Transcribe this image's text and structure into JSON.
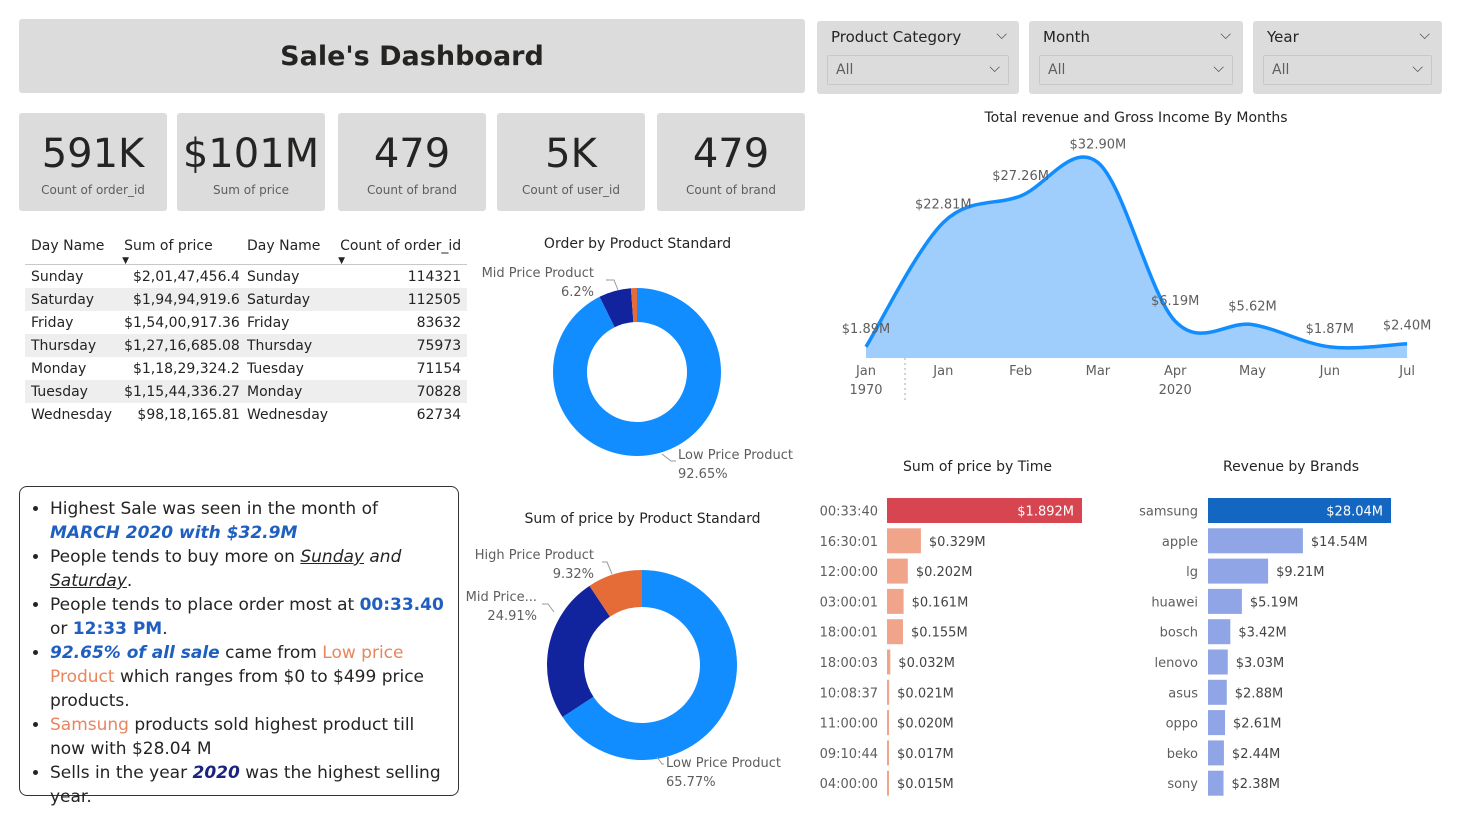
{
  "title": "Sale's Dashboard",
  "filters": [
    {
      "label": "Product Category",
      "value": "All"
    },
    {
      "label": "Month",
      "value": "All"
    },
    {
      "label": "Year",
      "value": "All"
    }
  ],
  "cards": [
    {
      "value": "591K",
      "label": "Count of order_id"
    },
    {
      "value": "$101M",
      "label": "Sum of price"
    },
    {
      "value": "479",
      "label": "Count of brand"
    },
    {
      "value": "5K",
      "label": "Count of user_id"
    },
    {
      "value": "479",
      "label": "Count of brand"
    }
  ],
  "table_price": {
    "headers": [
      "Day Name",
      "Sum of price"
    ],
    "rows": [
      [
        "Sunday",
        "$2,01,47,456.4"
      ],
      [
        "Saturday",
        "$1,94,94,919.6"
      ],
      [
        "Friday",
        "$1,54,00,917.36"
      ],
      [
        "Thursday",
        "$1,27,16,685.08"
      ],
      [
        "Monday",
        "$1,18,29,324.2"
      ],
      [
        "Tuesday",
        "$1,15,44,336.27"
      ],
      [
        "Wednesday",
        "$98,18,165.81"
      ]
    ]
  },
  "table_orders": {
    "headers": [
      "Day Name",
      "Count of order_id"
    ],
    "rows": [
      [
        "Sunday",
        "114321"
      ],
      [
        "Saturday",
        "112505"
      ],
      [
        "Friday",
        "83632"
      ],
      [
        "Thursday",
        "75973"
      ],
      [
        "Tuesday",
        "71154"
      ],
      [
        "Monday",
        "70828"
      ],
      [
        "Wednesday",
        "62734"
      ]
    ]
  },
  "insights": {
    "l1a": "Highest Sale was seen in the month of ",
    "l1b": "MARCH 2020 with $32.9M",
    "l2a": "People tends to buy more on ",
    "l2b": "Sunday",
    "l2c": " and ",
    "l2d": "Saturday",
    "l2e": ".",
    "l3a": "People tends to place order most at ",
    "l3b": "00:33.40",
    "l3c": " or ",
    "l3d": "12:33 PM",
    "l3e": ".",
    "l4a": "92.65% of all sale",
    "l4b": " came from ",
    "l4c": "Low price Product",
    "l4d": " which ranges from $0 to $499 price products.",
    "l5a": "Samsung",
    "l5b": " products sold highest product till now with $28.04 M",
    "l6a": "Sells in the year ",
    "l6b": "2020",
    "l6c": " was the highest selling year."
  },
  "chart_data": [
    {
      "id": "revenue_by_month",
      "type": "area",
      "title": "Total revenue and Gross Income By Months",
      "categories": [
        "Jan",
        "Jan",
        "Feb",
        "Mar",
        "Apr",
        "May",
        "Jun",
        "Jul"
      ],
      "year_labels": [
        "1970",
        "2020"
      ],
      "values": [
        1.89,
        22.81,
        27.26,
        32.9,
        6.19,
        5.62,
        1.87,
        2.4
      ],
      "data_labels": [
        "$1.89M",
        "$22.81M",
        "$27.26M",
        "$32.90M",
        "$6.19M",
        "$5.62M",
        "$1.87M",
        "$2.40M"
      ],
      "color": "#118dff",
      "fill": "#9fcdfc"
    },
    {
      "id": "order_by_product_standard",
      "type": "pie",
      "title": "Order by Product Standard",
      "slices": [
        {
          "name": "Low Price Product",
          "value": 92.65,
          "label": "92.65%",
          "color": "#118dff"
        },
        {
          "name": "Mid Price Product",
          "value": 6.2,
          "label": "6.2%",
          "color": "#12239e"
        },
        {
          "name": "",
          "value": 1.15,
          "label": "",
          "color": "#e66c37"
        }
      ]
    },
    {
      "id": "sum_price_by_product_standard",
      "type": "pie",
      "title": "Sum of price by Product Standard",
      "slices": [
        {
          "name": "Low Price Product",
          "value": 65.77,
          "label": "65.77%",
          "color": "#118dff"
        },
        {
          "name": "Mid Price...",
          "value": 24.91,
          "label": "24.91%",
          "color": "#12239e"
        },
        {
          "name": "High Price Product",
          "value": 9.32,
          "label": "9.32%",
          "color": "#e66c37"
        }
      ]
    },
    {
      "id": "sum_price_by_time",
      "type": "bar",
      "title": "Sum of price by Time",
      "categories": [
        "00:33:40",
        "16:30:01",
        "12:00:00",
        "03:00:01",
        "18:00:01",
        "18:00:03",
        "10:08:37",
        "11:00:00",
        "09:10:44",
        "04:00:00"
      ],
      "values": [
        1.892,
        0.329,
        0.202,
        0.161,
        0.155,
        0.032,
        0.021,
        0.02,
        0.017,
        0.015
      ],
      "data_labels": [
        "$1.892M",
        "$0.329M",
        "$0.202M",
        "$0.161M",
        "$0.155M",
        "$0.032M",
        "$0.021M",
        "$0.020M",
        "$0.017M",
        "$0.015M"
      ],
      "colors": {
        "max": "#d64550",
        "other": "#f0a58a"
      }
    },
    {
      "id": "revenue_by_brands",
      "type": "bar",
      "title": "Revenue by Brands",
      "categories": [
        "samsung",
        "apple",
        "lg",
        "huawei",
        "bosch",
        "lenovo",
        "asus",
        "oppo",
        "beko",
        "sony"
      ],
      "values": [
        28.04,
        14.54,
        9.21,
        5.19,
        3.42,
        3.03,
        2.88,
        2.61,
        2.44,
        2.38
      ],
      "data_labels": [
        "$28.04M",
        "$14.54M",
        "$9.21M",
        "$5.19M",
        "$3.42M",
        "$3.03M",
        "$2.88M",
        "$2.61M",
        "$2.44M",
        "$2.38M"
      ],
      "colors": {
        "max": "#1467c0",
        "other": "#8fa5e6"
      }
    }
  ]
}
